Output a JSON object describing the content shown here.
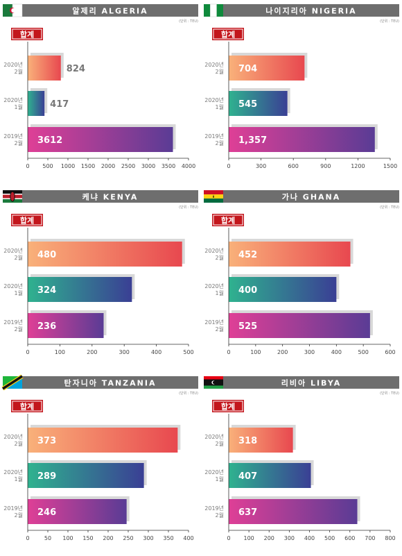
{
  "colors": {
    "header_bg": "#6e6e6e",
    "badge_red": "#c3161c",
    "axis": "#333333",
    "label_gray": "#777777",
    "shadow": "#d8d8d8",
    "grad_orange": [
      "#f9b17a",
      "#e8484f"
    ],
    "grad_teal": [
      "#2fb28f",
      "#3a3f94"
    ],
    "grad_magenta": [
      "#df3f96",
      "#5a3c95"
    ]
  },
  "unit_label": "(단위 : TEU)",
  "badge_label": "합계",
  "category_labels": [
    [
      "2020년",
      "2월"
    ],
    [
      "2020년",
      "1월"
    ],
    [
      "2019년",
      "2월"
    ]
  ],
  "chart_data": [
    {
      "type": "bar",
      "orientation": "horizontal",
      "title": "알제리 ALGERIA",
      "flag_icon": "algeria-flag-icon",
      "categories": [
        "2020년 2월",
        "2020년 1월",
        "2019년 2월"
      ],
      "values": [
        824,
        417,
        3612
      ],
      "value_labels": [
        "824",
        "417",
        "3612"
      ],
      "xlim": [
        0,
        4000
      ],
      "ticks": [
        0,
        500,
        1000,
        1500,
        2000,
        2500,
        3000,
        3500,
        4000
      ],
      "tick_labels": [
        "0",
        "500",
        "1000",
        "1500",
        "2000",
        "2500",
        "3000",
        "3500",
        "4000"
      ]
    },
    {
      "type": "bar",
      "orientation": "horizontal",
      "title": "나이지리아 NIGERIA",
      "flag_icon": "nigeria-flag-icon",
      "categories": [
        "2020년 2월",
        "2020년 1월",
        "2019년 2월"
      ],
      "values": [
        704,
        545,
        1357
      ],
      "value_labels": [
        "704",
        "545",
        "1,357"
      ],
      "xlim": [
        0,
        1500
      ],
      "ticks": [
        0,
        300,
        600,
        900,
        1200,
        1500
      ],
      "tick_labels": [
        "0",
        "300",
        "600",
        "900",
        "1200",
        "1500"
      ]
    },
    {
      "type": "bar",
      "orientation": "horizontal",
      "title": "케냐 KENYA",
      "flag_icon": "kenya-flag-icon",
      "categories": [
        "2020년 2월",
        "2020년 1월",
        "2019년 2월"
      ],
      "values": [
        480,
        324,
        236
      ],
      "value_labels": [
        "480",
        "324",
        "236"
      ],
      "xlim": [
        0,
        500
      ],
      "ticks": [
        0,
        100,
        200,
        300,
        400,
        500
      ],
      "tick_labels": [
        "0",
        "100",
        "200",
        "300",
        "400",
        "500"
      ]
    },
    {
      "type": "bar",
      "orientation": "horizontal",
      "title": "가나 GHANA",
      "flag_icon": "ghana-flag-icon",
      "categories": [
        "2020년 2월",
        "2020년 1월",
        "2019년 2월"
      ],
      "values": [
        452,
        400,
        525
      ],
      "value_labels": [
        "452",
        "400",
        "525"
      ],
      "xlim": [
        0,
        600
      ],
      "ticks": [
        0,
        100,
        200,
        300,
        400,
        500,
        600
      ],
      "tick_labels": [
        "0",
        "100",
        "200",
        "300",
        "400",
        "500",
        "600"
      ]
    },
    {
      "type": "bar",
      "orientation": "horizontal",
      "title": "탄자니아 TANZANIA",
      "flag_icon": "tanzania-flag-icon",
      "categories": [
        "2020년 2월",
        "2020년 1월",
        "2019년 2월"
      ],
      "values": [
        373,
        289,
        246
      ],
      "value_labels": [
        "373",
        "289",
        "246"
      ],
      "xlim": [
        0,
        400
      ],
      "ticks": [
        0,
        50,
        100,
        150,
        200,
        250,
        300,
        350,
        400
      ],
      "tick_labels": [
        "0",
        "50",
        "100",
        "150",
        "200",
        "250",
        "300",
        "350",
        "400"
      ]
    },
    {
      "type": "bar",
      "orientation": "horizontal",
      "title": "리비아 LIBYA",
      "flag_icon": "libya-flag-icon",
      "categories": [
        "2020년 2월",
        "2020년 1월",
        "2019년 2월"
      ],
      "values": [
        318,
        407,
        637
      ],
      "value_labels": [
        "318",
        "407",
        "637"
      ],
      "xlim": [
        0,
        800
      ],
      "ticks": [
        0,
        100,
        200,
        300,
        400,
        500,
        600,
        700,
        800
      ],
      "tick_labels": [
        "0",
        "100",
        "200",
        "300",
        "400",
        "500",
        "600",
        "700",
        "800"
      ]
    }
  ]
}
